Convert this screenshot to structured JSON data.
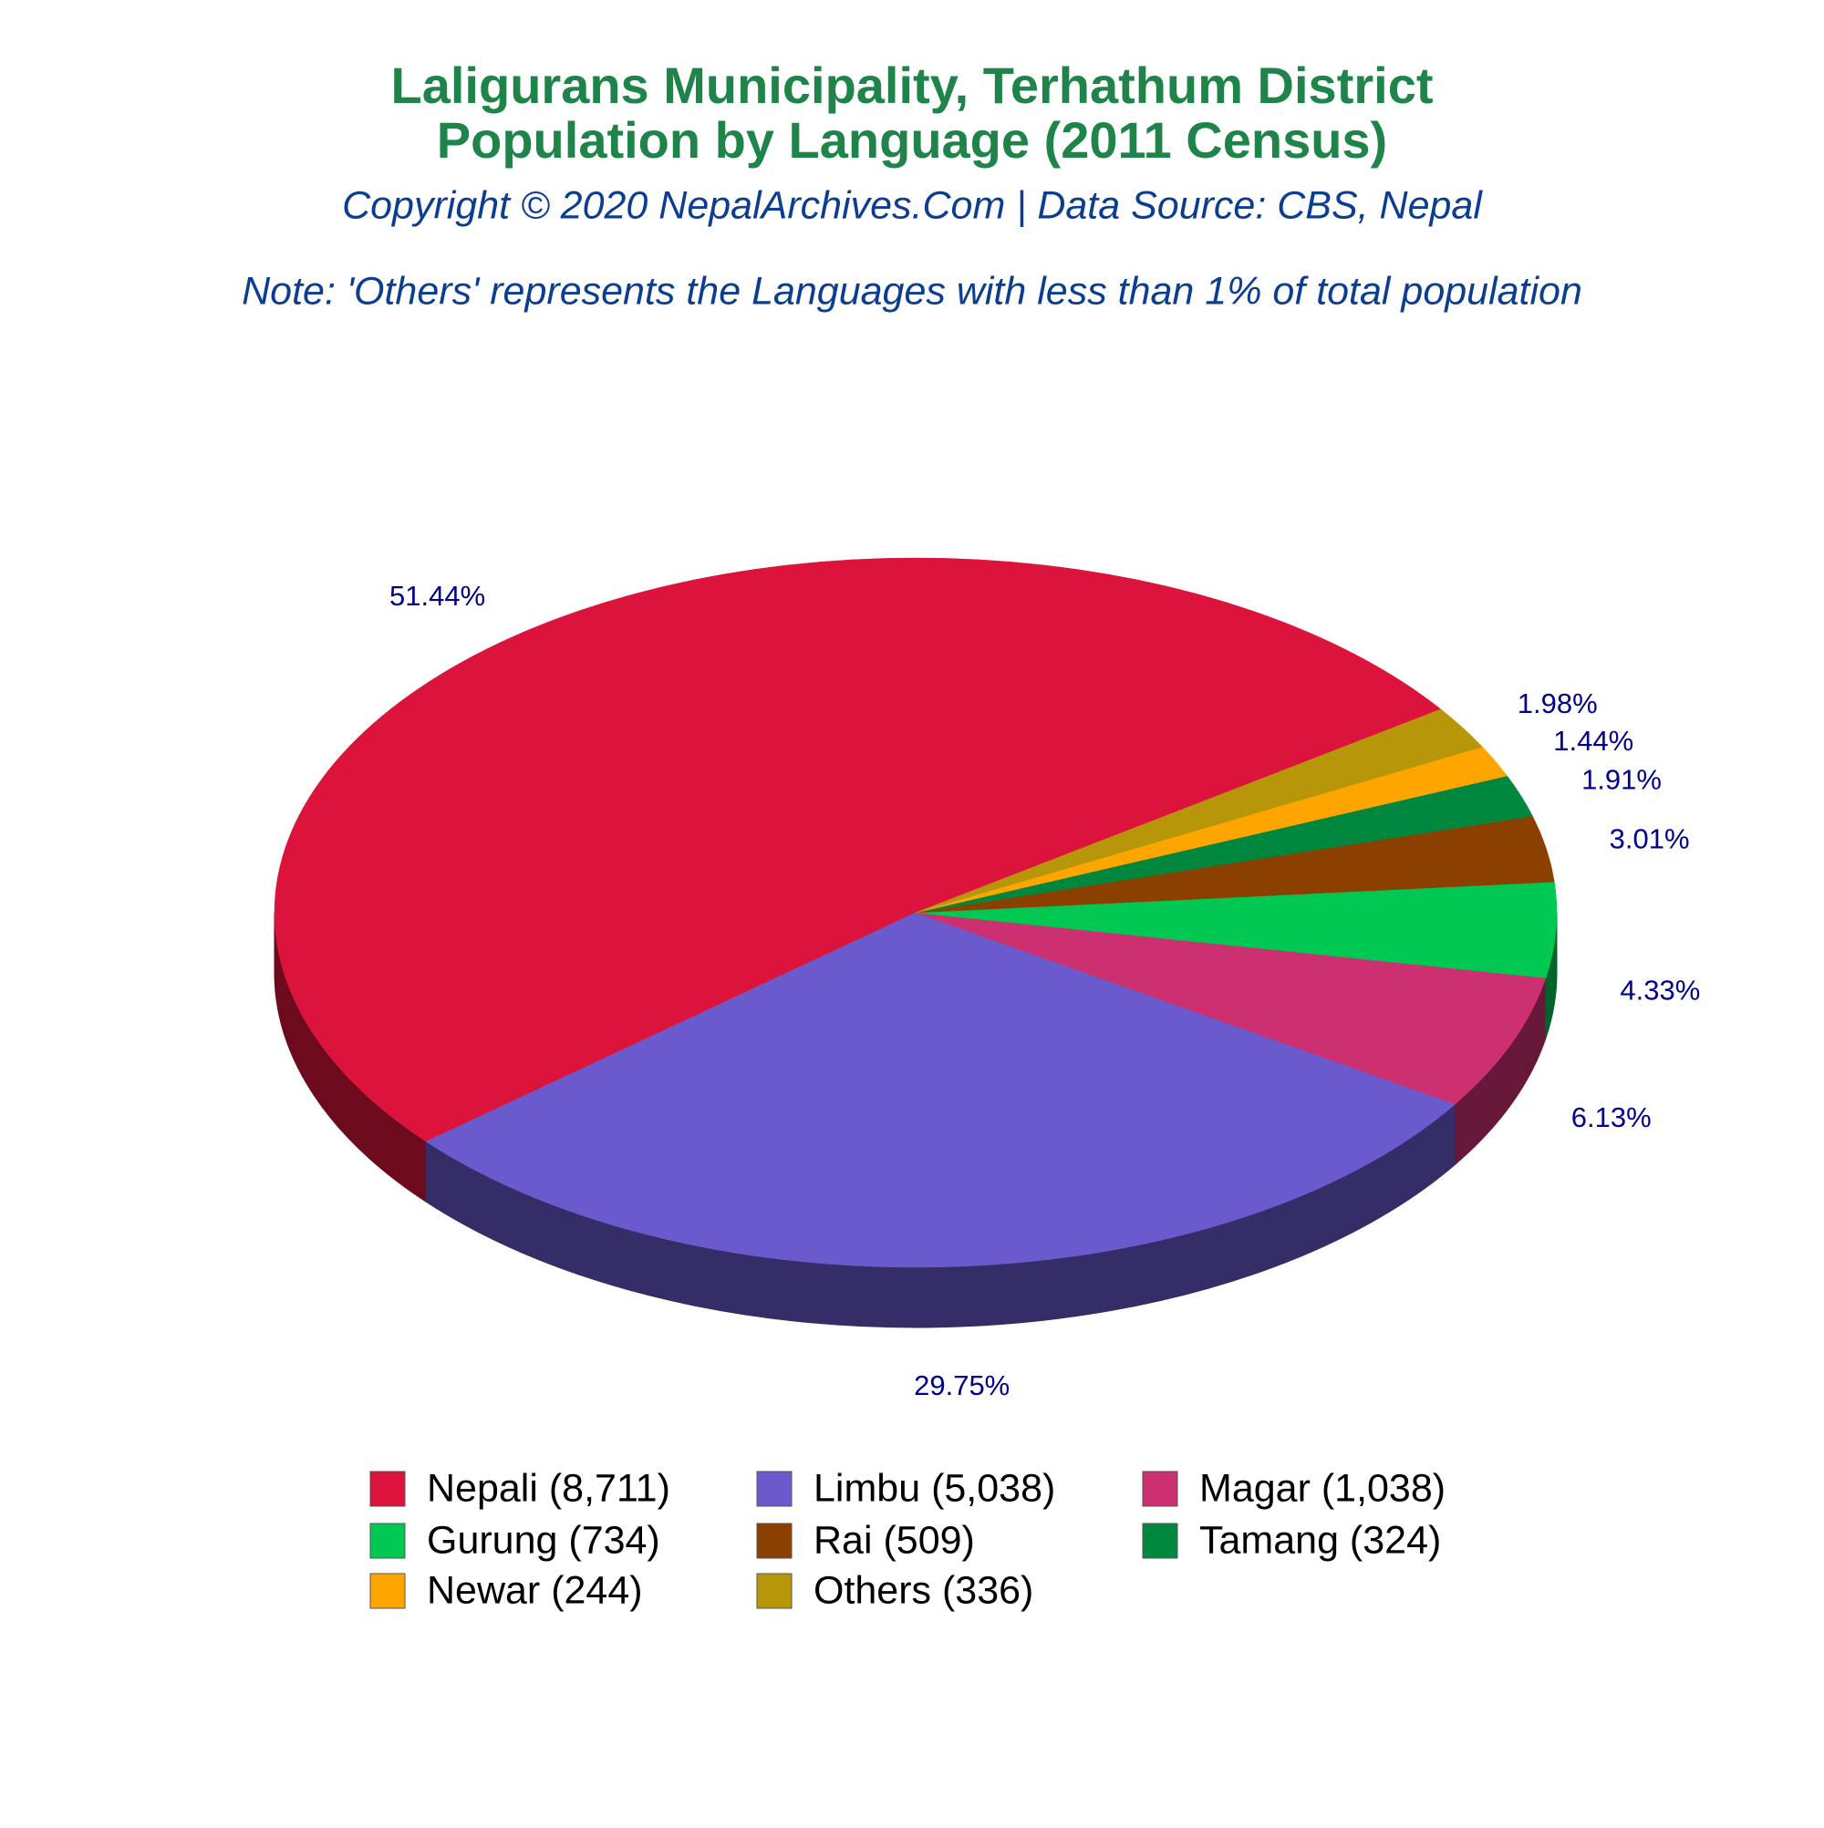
{
  "chart_data": {
    "type": "pie",
    "title": [
      "Laligurans Municipality, Terhathum District",
      "Population by Language (2011 Census)"
    ],
    "subtitle": "Copyright © 2020 NepalArchives.Com | Data Source: CBS, Nepal",
    "note": "Note: 'Others' represents the Languages with less than 1% of total population",
    "categories": [
      "Nepali (8,711)",
      "Limbu (5,038)",
      "Magar (1,038)",
      "Gurung (734)",
      "Rai (509)",
      "Tamang (324)",
      "Newar (244)",
      "Others (336)"
    ],
    "values": [
      51.44,
      29.75,
      6.13,
      4.33,
      3.01,
      1.91,
      1.44,
      1.98
    ],
    "value_labels": [
      "51.44%",
      "29.75%",
      "6.13%",
      "4.33%",
      "3.01%",
      "1.91%",
      "1.44%",
      "1.98%"
    ],
    "colors": [
      "#dc143c",
      "#6a5acd",
      "#cd3070",
      "#00c853",
      "#8b4000",
      "#00873e",
      "#ffa500",
      "#b8960a"
    ]
  }
}
